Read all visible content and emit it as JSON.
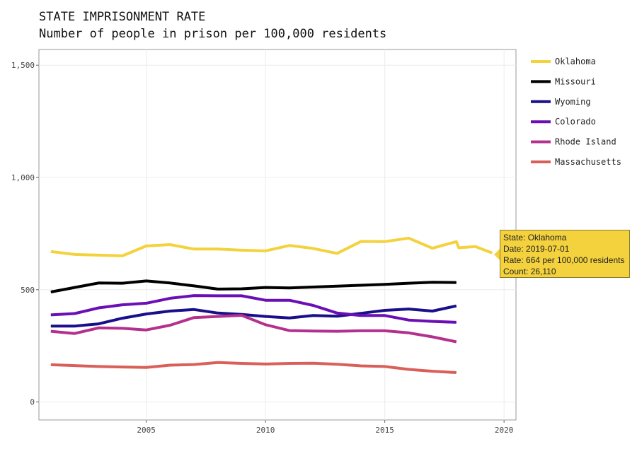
{
  "chart_data": {
    "type": "line",
    "title": "STATE IMPRISONMENT RATE",
    "subtitle": "Number of people in prison per 100,000 residents",
    "xlabel": "",
    "ylabel": "",
    "xlim": [
      2000.5,
      2020.5
    ],
    "ylim": [
      -80,
      1570
    ],
    "x_ticks": [
      2005,
      2010,
      2015,
      2020
    ],
    "x_tick_labels": [
      "2005",
      "2010",
      "2015",
      "2020"
    ],
    "y_ticks": [
      0,
      500,
      1000,
      1500
    ],
    "y_tick_labels": [
      "0",
      "500",
      "1,000",
      "1,500"
    ],
    "grid": true,
    "legend_position": "right",
    "series": [
      {
        "name": "Oklahoma",
        "color": "#f4d23e",
        "x": [
          2001,
          2002,
          2003,
          2004,
          2005,
          2006,
          2007,
          2008,
          2009,
          2010,
          2011,
          2012,
          2013,
          2014,
          2015,
          2016,
          2017,
          2018,
          2018.1,
          2018.5,
          2018.8,
          2019.1,
          2019.5
        ],
        "y": [
          670,
          657,
          654,
          651,
          695,
          701,
          681,
          681,
          676,
          673,
          697,
          684,
          662,
          715,
          714,
          730,
          685,
          714,
          687,
          690,
          692,
          680,
          664
        ]
      },
      {
        "name": "Missouri",
        "color": "#000000",
        "x": [
          2001,
          2002,
          2003,
          2004,
          2005,
          2006,
          2007,
          2008,
          2009,
          2010,
          2011,
          2012,
          2013,
          2014,
          2015,
          2016,
          2017,
          2018
        ],
        "y": [
          490,
          510,
          530,
          529,
          539,
          530,
          517,
          503,
          504,
          510,
          508,
          512,
          516,
          520,
          524,
          529,
          533,
          532
        ]
      },
      {
        "name": "Wyoming",
        "color": "#1a0f8a",
        "x": [
          2001,
          2002,
          2003,
          2004,
          2005,
          2006,
          2007,
          2008,
          2009,
          2010,
          2011,
          2012,
          2013,
          2014,
          2015,
          2016,
          2017,
          2018
        ],
        "y": [
          338,
          338,
          348,
          373,
          392,
          405,
          412,
          396,
          390,
          381,
          374,
          385,
          382,
          395,
          408,
          414,
          405,
          428
        ]
      },
      {
        "name": "Colorado",
        "color": "#6a0fb5",
        "x": [
          2001,
          2002,
          2003,
          2004,
          2005,
          2006,
          2007,
          2008,
          2009,
          2010,
          2011,
          2012,
          2013,
          2014,
          2015,
          2016,
          2017,
          2018
        ],
        "y": [
          388,
          394,
          419,
          433,
          440,
          462,
          474,
          473,
          473,
          453,
          453,
          430,
          396,
          385,
          385,
          365,
          359,
          355
        ]
      },
      {
        "name": "Rhode Island",
        "color": "#b3318d",
        "x": [
          2001,
          2002,
          2003,
          2004,
          2005,
          2006,
          2007,
          2008,
          2009,
          2010,
          2011,
          2012,
          2013,
          2014,
          2015,
          2016,
          2017,
          2018
        ],
        "y": [
          315,
          305,
          330,
          328,
          321,
          342,
          376,
          381,
          386,
          344,
          318,
          316,
          315,
          317,
          317,
          308,
          290,
          268
        ]
      },
      {
        "name": "Massachusetts",
        "color": "#d9605a",
        "x": [
          2001,
          2002,
          2003,
          2004,
          2005,
          2006,
          2007,
          2008,
          2009,
          2010,
          2011,
          2012,
          2013,
          2014,
          2015,
          2016,
          2017,
          2018
        ],
        "y": [
          166,
          162,
          158,
          156,
          154,
          164,
          167,
          176,
          172,
          169,
          172,
          173,
          168,
          161,
          158,
          145,
          137,
          131
        ]
      }
    ]
  },
  "tooltip": {
    "state": "State: Oklahoma",
    "date": "Date: 2019-07-01",
    "rate": "Rate: 664 per 100,000 residents",
    "count": "Count: 26,110"
  }
}
